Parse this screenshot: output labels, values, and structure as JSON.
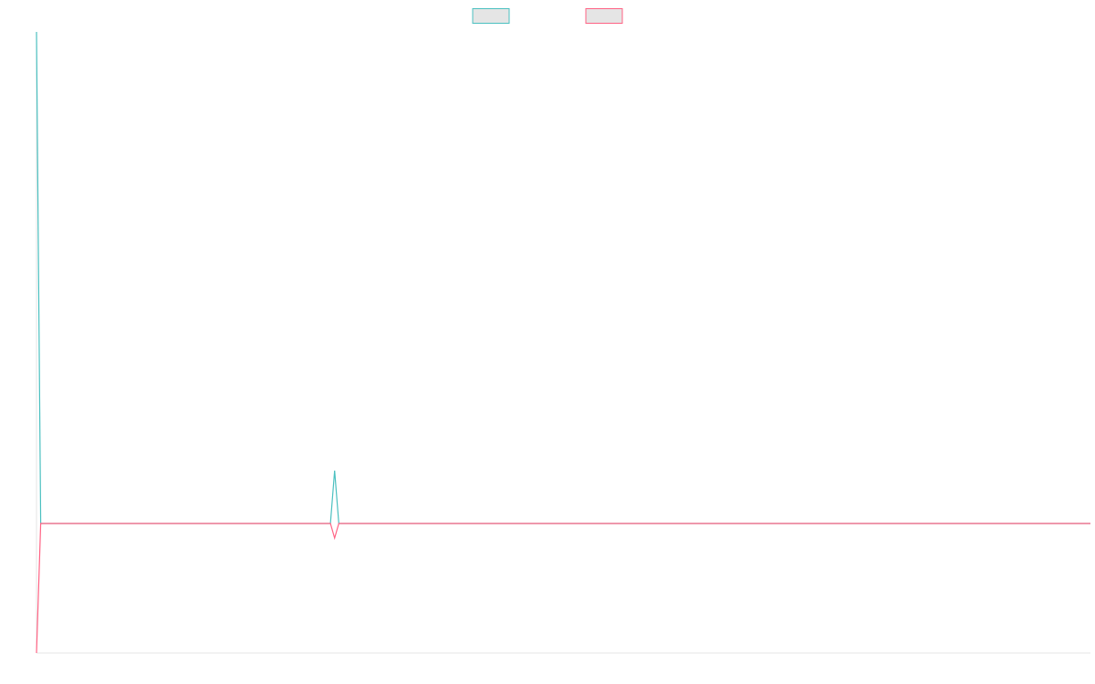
{
  "chart_data": {
    "type": "line",
    "x": [
      0,
      1,
      70,
      71,
      72,
      251
    ],
    "xlim": [
      0,
      251
    ],
    "ylim": [
      -142,
      539
    ],
    "legend": "top",
    "series": [
      {
        "color": "#4bc0c0",
        "values": [
          539,
          0,
          0,
          58,
          0,
          0
        ]
      },
      {
        "color": "#ff6384",
        "values": [
          -142,
          0,
          0,
          -16,
          0,
          0
        ]
      }
    ]
  }
}
